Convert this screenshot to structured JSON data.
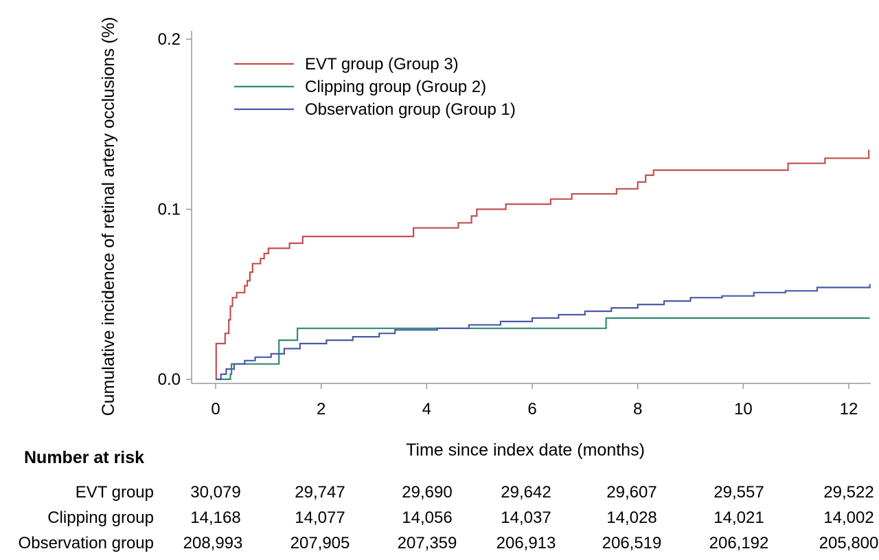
{
  "chart_data": {
    "type": "line",
    "title": "",
    "xlabel": "Time since index date (months)",
    "ylabel": "Cumulative incidence of retinal artery occlusions (%)",
    "xlim": [
      0,
      12.4
    ],
    "ylim": [
      0,
      0.2
    ],
    "x_ticks": [
      0,
      2,
      4,
      6,
      8,
      10,
      12
    ],
    "x_tick_labels": [
      "0",
      "2",
      "4",
      "6",
      "8",
      "10",
      "12"
    ],
    "y_ticks": [
      0.0,
      0.1,
      0.2
    ],
    "y_tick_labels": [
      "0.0",
      "0.1",
      "0.2"
    ],
    "grid": false,
    "legend_position": "top-left",
    "series": [
      {
        "name": "EVT group (Group 3)",
        "color": "#c0504d",
        "step": true,
        "points": [
          [
            0,
            0
          ],
          [
            0.01,
            0.021
          ],
          [
            0.18,
            0.027
          ],
          [
            0.25,
            0.035
          ],
          [
            0.28,
            0.043
          ],
          [
            0.32,
            0.048
          ],
          [
            0.4,
            0.051
          ],
          [
            0.55,
            0.055
          ],
          [
            0.6,
            0.058
          ],
          [
            0.65,
            0.063
          ],
          [
            0.7,
            0.068
          ],
          [
            0.85,
            0.071
          ],
          [
            0.92,
            0.074
          ],
          [
            1.0,
            0.077
          ],
          [
            1.4,
            0.08
          ],
          [
            1.65,
            0.084
          ],
          [
            3.75,
            0.089
          ],
          [
            4.6,
            0.092
          ],
          [
            4.85,
            0.096
          ],
          [
            4.95,
            0.1
          ],
          [
            5.5,
            0.103
          ],
          [
            6.35,
            0.106
          ],
          [
            6.75,
            0.109
          ],
          [
            7.6,
            0.112
          ],
          [
            8.0,
            0.116
          ],
          [
            8.15,
            0.12
          ],
          [
            8.3,
            0.123
          ],
          [
            10.85,
            0.127
          ],
          [
            11.55,
            0.13
          ],
          [
            12.38,
            0.135
          ]
        ]
      },
      {
        "name": "Clipping group (Group 2)",
        "color": "#2e8b74",
        "step": true,
        "points": [
          [
            0,
            0
          ],
          [
            0.28,
            0.003
          ],
          [
            0.3,
            0.009
          ],
          [
            1.2,
            0.023
          ],
          [
            1.55,
            0.03
          ],
          [
            7.4,
            0.036
          ],
          [
            12.4,
            0.036
          ]
        ]
      },
      {
        "name": "Observation group (Group 1)",
        "color": "#4a5aa6",
        "step": true,
        "points": [
          [
            0,
            0
          ],
          [
            0.1,
            0.003
          ],
          [
            0.2,
            0.006
          ],
          [
            0.35,
            0.009
          ],
          [
            0.55,
            0.011
          ],
          [
            0.75,
            0.013
          ],
          [
            1.05,
            0.015
          ],
          [
            1.3,
            0.018
          ],
          [
            1.6,
            0.021
          ],
          [
            2.1,
            0.023
          ],
          [
            2.6,
            0.025
          ],
          [
            3.1,
            0.027
          ],
          [
            3.4,
            0.029
          ],
          [
            4.2,
            0.03
          ],
          [
            4.8,
            0.032
          ],
          [
            5.4,
            0.034
          ],
          [
            6.0,
            0.036
          ],
          [
            6.5,
            0.038
          ],
          [
            7.0,
            0.04
          ],
          [
            7.5,
            0.042
          ],
          [
            8.0,
            0.044
          ],
          [
            8.5,
            0.046
          ],
          [
            9.0,
            0.048
          ],
          [
            9.6,
            0.049
          ],
          [
            10.2,
            0.051
          ],
          [
            10.8,
            0.052
          ],
          [
            11.4,
            0.054
          ],
          [
            12.4,
            0.056
          ]
        ]
      }
    ]
  },
  "risk_table": {
    "title": "Number at risk",
    "rows": [
      {
        "label": "EVT group",
        "values": [
          "30,079",
          "29,747",
          "29,690",
          "29,642",
          "29,607",
          "29,557",
          "29,522"
        ]
      },
      {
        "label": "Clipping group",
        "values": [
          "14,168",
          "14,077",
          "14,056",
          "14,037",
          "14,028",
          "14,021",
          "14,002"
        ]
      },
      {
        "label": "Observation group",
        "values": [
          "208,993",
          "207,905",
          "207,359",
          "206,913",
          "206,519",
          "206,192",
          "205,800"
        ]
      }
    ]
  }
}
